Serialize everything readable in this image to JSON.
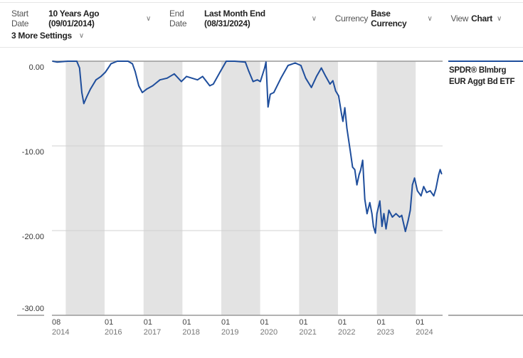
{
  "settings": {
    "start_date": {
      "label": "Start Date",
      "value": "10 Years Ago (09/01/2014)"
    },
    "end_date": {
      "label": "End Date",
      "value": "Last Month End (08/31/2024)"
    },
    "currency": {
      "label": "Currency",
      "value": "Base Currency"
    },
    "view": {
      "label": "View",
      "value": "Chart"
    },
    "more": {
      "label": "3 More Settings"
    },
    "chevron_icon": "chevron-down-icon"
  },
  "chart_data": {
    "type": "line",
    "title": "",
    "xlabel": "",
    "ylabel": "",
    "ylim": [
      -30,
      0
    ],
    "y_ticks": [
      "0.00",
      "-10.00",
      "-20.00",
      "-30.00"
    ],
    "y_tick_values": [
      0,
      -10,
      -20,
      -30
    ],
    "x_ticks": [
      {
        "month": "08",
        "year": "2014",
        "date": "2014-08-01"
      },
      {
        "month": "01",
        "year": "2016",
        "date": "2016-01-01"
      },
      {
        "month": "01",
        "year": "2017",
        "date": "2017-01-01"
      },
      {
        "month": "01",
        "year": "2018",
        "date": "2018-01-01"
      },
      {
        "month": "01",
        "year": "2019",
        "date": "2019-01-01"
      },
      {
        "month": "01",
        "year": "2020",
        "date": "2020-01-01"
      },
      {
        "month": "01",
        "year": "2021",
        "date": "2021-01-01"
      },
      {
        "month": "01",
        "year": "2022",
        "date": "2022-01-01"
      },
      {
        "month": "01",
        "year": "2023",
        "date": "2023-01-01"
      },
      {
        "month": "01",
        "year": "2024",
        "date": "2024-01-01"
      }
    ],
    "shaded_years": [
      "2015",
      "2017",
      "2019",
      "2021",
      "2023"
    ],
    "grid": true,
    "legend_position": "right",
    "colors": {
      "line": "#1f4e9c",
      "band": "#e3e3e3",
      "grid": "#d0d0d0",
      "axis": "#999999"
    },
    "series": [
      {
        "name": "SPDR® Blmbrg EUR Aggt Bd ETF",
        "points": [
          [
            "2014-09-01",
            0
          ],
          [
            "2014-10-10",
            -0.1
          ],
          [
            "2015-01-19",
            0
          ],
          [
            "2015-04-15",
            0
          ],
          [
            "2015-05-11",
            -0.8
          ],
          [
            "2015-06-01",
            -3.7
          ],
          [
            "2015-06-20",
            -5.0
          ],
          [
            "2015-07-17",
            -4.2
          ],
          [
            "2015-08-20",
            -3.3
          ],
          [
            "2015-10-12",
            -2.2
          ],
          [
            "2015-11-28",
            -1.8
          ],
          [
            "2016-01-08",
            -1.3
          ],
          [
            "2016-02-04",
            -0.8
          ],
          [
            "2016-03-01",
            -0.3
          ],
          [
            "2016-04-29",
            0
          ],
          [
            "2016-08-08",
            0
          ],
          [
            "2016-09-18",
            -0.3
          ],
          [
            "2016-10-14",
            -1.2
          ],
          [
            "2016-11-17",
            -2.9
          ],
          [
            "2016-12-20",
            -3.7
          ],
          [
            "2017-01-29",
            -3.3
          ],
          [
            "2017-03-28",
            -2.9
          ],
          [
            "2017-06-04",
            -2.2
          ],
          [
            "2017-08-10",
            -2.0
          ],
          [
            "2017-10-16",
            -1.5
          ],
          [
            "2017-12-22",
            -2.4
          ],
          [
            "2018-02-08",
            -1.8
          ],
          [
            "2018-04-01",
            -2.0
          ],
          [
            "2018-05-23",
            -2.2
          ],
          [
            "2018-07-09",
            -1.8
          ],
          [
            "2018-09-15",
            -2.9
          ],
          [
            "2018-10-18",
            -2.7
          ],
          [
            "2018-12-24",
            -1.2
          ],
          [
            "2019-02-17",
            0
          ],
          [
            "2019-05-06",
            0
          ],
          [
            "2019-08-15",
            -0.1
          ],
          [
            "2019-09-17",
            -1.2
          ],
          [
            "2019-10-27",
            -2.4
          ],
          [
            "2019-12-06",
            -2.2
          ],
          [
            "2020-01-03",
            -2.4
          ],
          [
            "2020-02-12",
            -0.8
          ],
          [
            "2020-02-25",
            -0.1
          ],
          [
            "2020-03-15",
            -5.4
          ],
          [
            "2020-04-05",
            -3.9
          ],
          [
            "2020-05-08",
            -3.7
          ],
          [
            "2020-07-14",
            -2.0
          ],
          [
            "2020-09-19",
            -0.5
          ],
          [
            "2020-11-25",
            -0.2
          ],
          [
            "2021-01-18",
            -0.5
          ],
          [
            "2021-03-04",
            -2.0
          ],
          [
            "2021-04-26",
            -3.1
          ],
          [
            "2021-06-13",
            -1.8
          ],
          [
            "2021-07-29",
            -0.8
          ],
          [
            "2021-09-08",
            -1.8
          ],
          [
            "2021-10-18",
            -2.7
          ],
          [
            "2021-11-14",
            -2.3
          ],
          [
            "2021-12-10",
            -3.5
          ],
          [
            "2022-01-07",
            -4.1
          ],
          [
            "2022-02-03",
            -6.2
          ],
          [
            "2022-02-16",
            -7.1
          ],
          [
            "2022-03-06",
            -5.5
          ],
          [
            "2022-03-26",
            -7.9
          ],
          [
            "2022-04-29",
            -10.8
          ],
          [
            "2022-05-18",
            -12.5
          ],
          [
            "2022-06-08",
            -12.8
          ],
          [
            "2022-06-28",
            -14.6
          ],
          [
            "2022-07-18",
            -13.4
          ],
          [
            "2022-08-01",
            -12.9
          ],
          [
            "2022-08-21",
            -11.7
          ],
          [
            "2022-09-10",
            -16.3
          ],
          [
            "2022-10-01",
            -18.0
          ],
          [
            "2022-10-27",
            -16.7
          ],
          [
            "2022-11-16",
            -18.0
          ],
          [
            "2022-11-30",
            -19.5
          ],
          [
            "2022-12-19",
            -20.3
          ],
          [
            "2023-01-02",
            -18.0
          ],
          [
            "2023-01-29",
            -16.5
          ],
          [
            "2023-02-18",
            -19.5
          ],
          [
            "2023-03-08",
            -18.0
          ],
          [
            "2023-03-28",
            -19.8
          ],
          [
            "2023-04-24",
            -17.6
          ],
          [
            "2023-05-27",
            -18.4
          ],
          [
            "2023-06-30",
            -18.0
          ],
          [
            "2023-08-03",
            -18.4
          ],
          [
            "2023-08-23",
            -18.2
          ],
          [
            "2023-09-26",
            -20.1
          ],
          [
            "2023-10-22",
            -18.8
          ],
          [
            "2023-11-11",
            -17.6
          ],
          [
            "2023-12-01",
            -14.6
          ],
          [
            "2023-12-21",
            -13.8
          ],
          [
            "2024-01-17",
            -15.3
          ],
          [
            "2024-02-20",
            -15.9
          ],
          [
            "2024-03-16",
            -14.8
          ],
          [
            "2024-04-13",
            -15.5
          ],
          [
            "2024-05-16",
            -15.3
          ],
          [
            "2024-06-19",
            -15.9
          ],
          [
            "2024-07-08",
            -15.1
          ],
          [
            "2024-08-04",
            -13.4
          ],
          [
            "2024-08-18",
            -12.8
          ],
          [
            "2024-08-31",
            -13.3
          ]
        ]
      }
    ]
  }
}
